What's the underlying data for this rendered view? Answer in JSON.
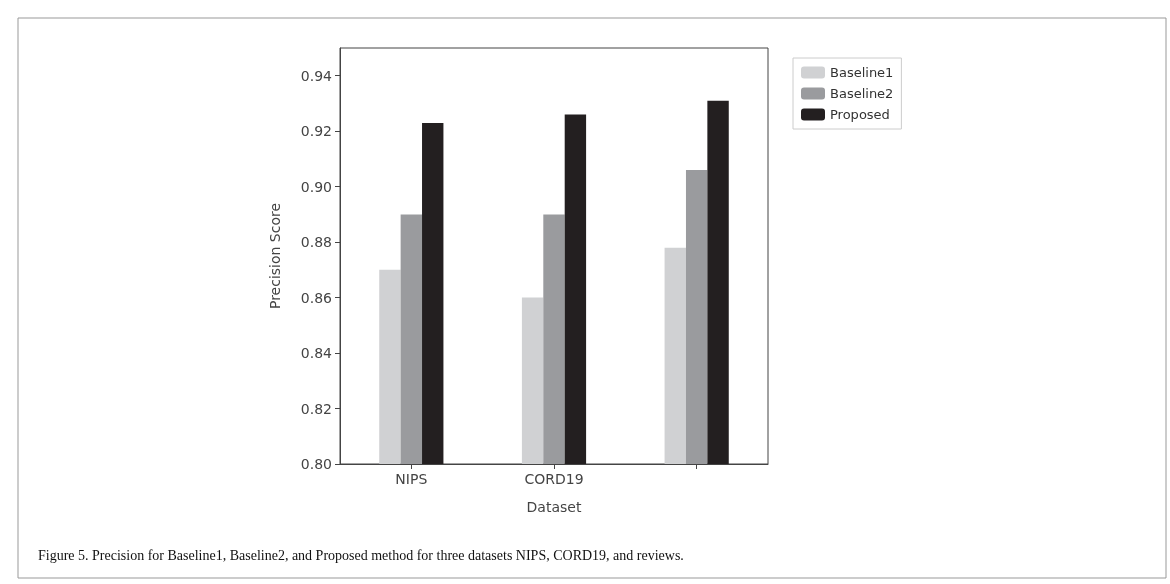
{
  "chart_data": {
    "type": "bar",
    "xlabel": "Dataset",
    "ylabel": "Precision Score",
    "categories": [
      "NIPS",
      "CORD19",
      null
    ],
    "series": [
      {
        "name": "Baseline1",
        "color": "#d0d1d3",
        "values": [
          0.87,
          0.86,
          0.878
        ]
      },
      {
        "name": "Baseline2",
        "color": "#9a9b9e",
        "values": [
          0.89,
          0.89,
          0.906
        ]
      },
      {
        "name": "Proposed",
        "color": "#231f20",
        "values": [
          0.923,
          0.926,
          0.931
        ]
      }
    ],
    "ylim": [
      0.8,
      0.95
    ],
    "yticks": [
      {
        "value": 0.8,
        "label": "0.80"
      },
      0.82,
      0.84,
      0.86,
      0.88,
      {
        "value": 0.9,
        "label": "0.90"
      },
      0.92,
      0.94
    ],
    "legend": "top right",
    "annotations": [
      "Figure 5. Precision for Baseline1, Baseline2, and Proposed method for three datasets NIPS, CORD19, and reviews."
    ]
  }
}
